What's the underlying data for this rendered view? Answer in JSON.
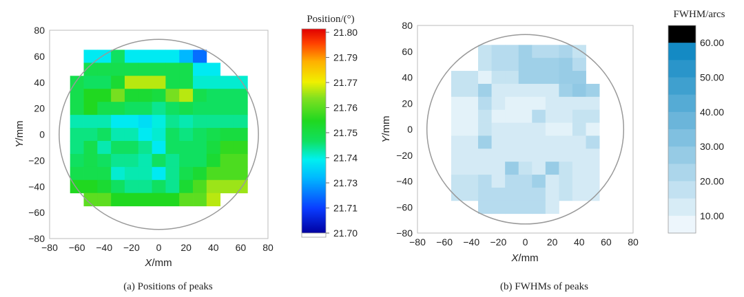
{
  "chart_data": [
    {
      "type": "heatmap",
      "caption": "(a) Positions of peaks",
      "xlabel_var": "X",
      "xlabel_unit": "/mm",
      "ylabel_var": "Y",
      "ylabel_unit": "/mm",
      "xlim": [
        -80,
        80
      ],
      "ylim": [
        -80,
        80
      ],
      "xticks": [
        "−80",
        "−60",
        "−40",
        "−20",
        "0",
        "20",
        "40",
        "60",
        "80"
      ],
      "yticks": [
        "80",
        "60",
        "40",
        "20",
        "0",
        "−20",
        "−40",
        "−60",
        "−80"
      ],
      "grid_x0": -65,
      "grid_y_top": 65,
      "cell": 10,
      "colorbar": {
        "title": "Position/(°)",
        "labels": [
          "21.80",
          "21.79",
          "21.77",
          "21.76",
          "21.75",
          "21.74",
          "21.73",
          "21.71",
          "21.70"
        ],
        "min": 21.7,
        "max": 21.8
      },
      "circle": {
        "cx": 0,
        "cy": 0,
        "r": 73
      },
      "values": [
        [
          null,
          21.735,
          21.735,
          21.745,
          21.735,
          21.735,
          21.735,
          21.735,
          21.727,
          21.718,
          null,
          null,
          null
        ],
        [
          null,
          21.748,
          21.748,
          21.748,
          21.748,
          21.748,
          21.748,
          21.748,
          21.748,
          21.735,
          21.735,
          null,
          null
        ],
        [
          21.748,
          21.745,
          21.745,
          21.752,
          21.77,
          21.77,
          21.77,
          21.748,
          21.748,
          21.738,
          21.738,
          21.738,
          21.738
        ],
        [
          21.748,
          21.755,
          21.755,
          21.765,
          21.752,
          21.752,
          21.75,
          21.765,
          21.77,
          21.748,
          21.745,
          21.745,
          21.745
        ],
        [
          21.748,
          21.755,
          21.748,
          21.748,
          21.745,
          21.745,
          21.742,
          21.745,
          21.748,
          21.745,
          21.745,
          21.745,
          21.745
        ],
        [
          21.74,
          21.74,
          21.74,
          21.735,
          21.735,
          21.733,
          21.737,
          21.742,
          21.74,
          21.742,
          21.742,
          21.742,
          21.742
        ],
        [
          21.743,
          21.743,
          21.745,
          21.74,
          21.74,
          21.735,
          21.738,
          21.745,
          21.743,
          21.745,
          21.748,
          21.75,
          21.75
        ],
        [
          21.743,
          21.748,
          21.74,
          21.745,
          21.745,
          21.742,
          21.735,
          21.745,
          21.745,
          21.745,
          21.75,
          21.757,
          21.757
        ],
        [
          21.745,
          21.748,
          21.745,
          21.742,
          21.742,
          21.74,
          21.745,
          21.742,
          21.745,
          21.745,
          21.752,
          21.76,
          21.76
        ],
        [
          21.748,
          21.748,
          21.748,
          21.738,
          21.74,
          21.74,
          21.735,
          21.742,
          21.748,
          21.752,
          21.76,
          21.76,
          21.76
        ],
        [
          21.755,
          21.755,
          21.752,
          21.745,
          21.742,
          21.742,
          21.745,
          21.742,
          21.752,
          21.76,
          21.768,
          21.768,
          21.768
        ],
        [
          null,
          21.762,
          21.762,
          21.755,
          21.755,
          21.755,
          21.755,
          21.755,
          21.762,
          21.762,
          21.77,
          null,
          null
        ],
        [
          null,
          null,
          null,
          null,
          null,
          null,
          null,
          null,
          null,
          null,
          null,
          null,
          null
        ]
      ]
    },
    {
      "type": "heatmap",
      "caption": "(b) FWHMs of peaks",
      "xlabel_var": "X",
      "xlabel_unit": "/mm",
      "ylabel_var": "Y",
      "ylabel_unit": "/mm",
      "xlim": [
        -80,
        80
      ],
      "ylim": [
        -80,
        80
      ],
      "xticks": [
        "−80",
        "−60",
        "−40",
        "−20",
        "0",
        "20",
        "40",
        "60",
        "80"
      ],
      "yticks": [
        "80",
        "60",
        "40",
        "20",
        "0",
        "−20",
        "−40",
        "−60",
        "−80"
      ],
      "grid_x0": -65,
      "grid_y_top": 65,
      "cell": 10,
      "colorbar": {
        "title": "FWHM/arcs",
        "labels": [
          "60.00",
          "50.00",
          "40.00",
          "30.00",
          "20.00",
          "10.00"
        ],
        "min": 5,
        "max": 65,
        "levels": 12
      },
      "circle": {
        "cx": 0,
        "cy": 0,
        "r": 73
      },
      "values": [
        [
          null,
          null,
          null,
          18,
          22,
          22,
          28,
          22,
          22,
          25,
          18,
          null,
          null
        ],
        [
          null,
          null,
          null,
          18,
          22,
          22,
          28,
          28,
          28,
          30,
          22,
          null,
          null
        ],
        [
          null,
          18,
          18,
          10,
          18,
          18,
          28,
          28,
          28,
          30,
          30,
          null,
          null
        ],
        [
          null,
          18,
          18,
          28,
          14,
          14,
          14,
          14,
          14,
          28,
          32,
          28,
          null
        ],
        [
          null,
          10,
          10,
          22,
          14,
          10,
          10,
          10,
          14,
          14,
          14,
          14,
          null
        ],
        [
          null,
          10,
          10,
          18,
          10,
          10,
          10,
          22,
          14,
          14,
          18,
          18,
          null
        ],
        [
          null,
          10,
          10,
          18,
          14,
          14,
          14,
          14,
          10,
          10,
          18,
          10,
          null
        ],
        [
          null,
          14,
          14,
          28,
          14,
          14,
          14,
          14,
          14,
          14,
          14,
          22,
          null
        ],
        [
          null,
          14,
          14,
          14,
          14,
          14,
          14,
          14,
          14,
          14,
          14,
          14,
          null
        ],
        [
          null,
          14,
          14,
          14,
          14,
          30,
          18,
          14,
          30,
          18,
          14,
          14,
          null
        ],
        [
          null,
          18,
          18,
          22,
          14,
          22,
          22,
          28,
          14,
          18,
          14,
          14,
          null
        ],
        [
          null,
          18,
          18,
          22,
          22,
          22,
          22,
          22,
          14,
          18,
          14,
          14,
          null
        ],
        [
          null,
          null,
          null,
          22,
          22,
          22,
          22,
          22,
          14,
          null,
          null,
          null,
          null
        ]
      ]
    }
  ]
}
